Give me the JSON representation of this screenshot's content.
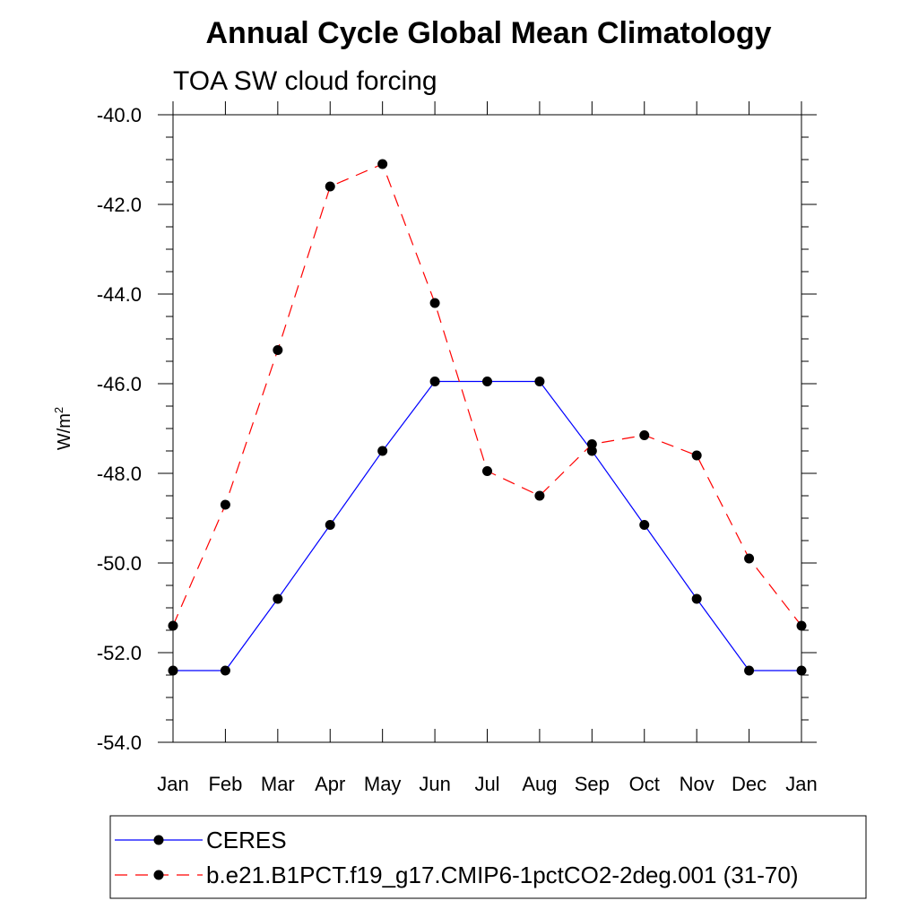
{
  "chart_data": {
    "type": "line",
    "title": "Annual Cycle Global Mean Climatology",
    "subtitle": "TOA SW cloud forcing",
    "ylabel": "W/m",
    "ylabel_superscript": "2",
    "xlabel": "",
    "categories": [
      "Jan",
      "Feb",
      "Mar",
      "Apr",
      "May",
      "Jun",
      "Jul",
      "Aug",
      "Sep",
      "Oct",
      "Nov",
      "Dec",
      "Jan"
    ],
    "ylim": [
      -54.0,
      -40.0
    ],
    "yticks": [
      "-40.0",
      "-42.0",
      "-44.0",
      "-46.0",
      "-48.0",
      "-50.0",
      "-52.0",
      "-54.0"
    ],
    "ytick_values": [
      -40,
      -42,
      -44,
      -46,
      -48,
      -50,
      -52,
      -54
    ],
    "grid": false,
    "legend_position": "bottom",
    "series": [
      {
        "name": "CERES",
        "color": "#0000ff",
        "line_style": "solid",
        "marker": "filled-circle",
        "values": [
          -52.4,
          -52.4,
          -50.8,
          -49.15,
          -47.5,
          -45.95,
          -45.95,
          -45.95,
          -47.5,
          -49.15,
          -50.8,
          -52.4,
          -52.4
        ]
      },
      {
        "name": "b.e21.B1PCT.f19_g17.CMIP6-1pctCO2-2deg.001 (31-70)",
        "color": "#ff0000",
        "line_style": "dashed",
        "marker": "filled-circle",
        "values": [
          -51.4,
          -48.7,
          -45.25,
          -41.6,
          -41.1,
          -44.2,
          -47.95,
          -48.5,
          -47.35,
          -47.15,
          -47.6,
          -49.9,
          -51.4
        ]
      }
    ]
  }
}
